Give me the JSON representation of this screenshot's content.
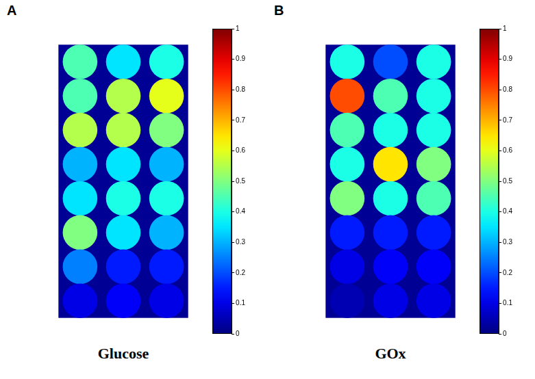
{
  "chart_data": [
    {
      "type": "heatmap",
      "panel": "A",
      "title": "Glucose",
      "tick_labels": false,
      "grid": false,
      "cells": [
        [
          0.45,
          0.35,
          0.4
        ],
        [
          0.45,
          0.55,
          0.6
        ],
        [
          0.55,
          0.55,
          0.5
        ],
        [
          0.3,
          0.35,
          0.3
        ],
        [
          0.35,
          0.4,
          0.4
        ],
        [
          0.5,
          0.35,
          0.3
        ],
        [
          0.25,
          0.15,
          0.15
        ],
        [
          0.1,
          0.12,
          0.1
        ]
      ],
      "colorbar_range": [
        0,
        1
      ],
      "colorbar_ticks": [
        0,
        0.1,
        0.2,
        0.3,
        0.4,
        0.5,
        0.6,
        0.7,
        0.8,
        0.9,
        1
      ]
    },
    {
      "type": "heatmap",
      "panel": "B",
      "title": "GOx",
      "tick_labels": false,
      "grid": false,
      "cells": [
        [
          0.4,
          0.2,
          0.4
        ],
        [
          0.8,
          0.45,
          0.4
        ],
        [
          0.45,
          0.4,
          0.4
        ],
        [
          0.4,
          0.65,
          0.5
        ],
        [
          0.5,
          0.4,
          0.45
        ],
        [
          0.15,
          0.15,
          0.15
        ],
        [
          0.1,
          0.12,
          0.12
        ],
        [
          0.05,
          0.1,
          0.1
        ]
      ],
      "colorbar_range": [
        0,
        1
      ],
      "colorbar_ticks": [
        0,
        0.1,
        0.2,
        0.3,
        0.4,
        0.5,
        0.6,
        0.7,
        0.8,
        0.9,
        1
      ]
    }
  ]
}
